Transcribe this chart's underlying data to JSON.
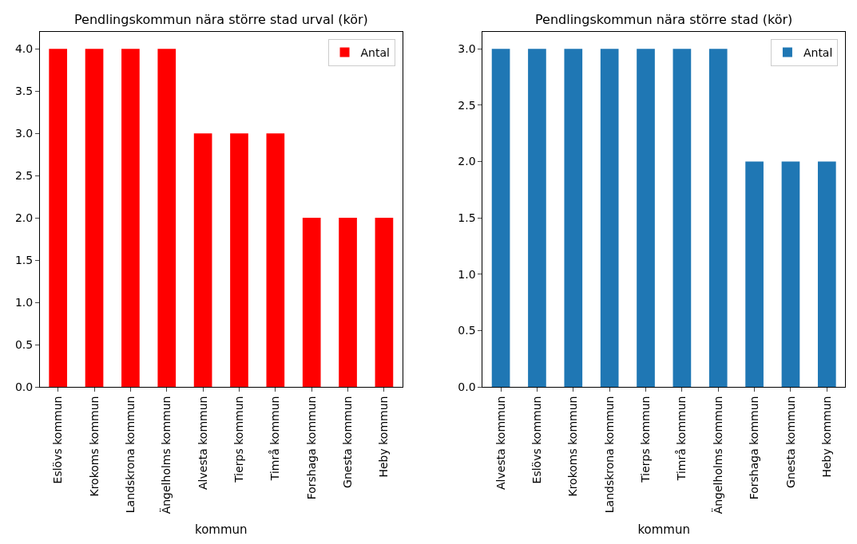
{
  "chart_data": [
    {
      "type": "bar",
      "title": "Pendlingskommun nära större stad urval (kör)",
      "xlabel": "kommun",
      "categories": [
        "Eslövs kommun",
        "Krokoms kommun",
        "Landskrona kommun",
        "Ängelholms kommun",
        "Alvesta kommun",
        "Tierps kommun",
        "Timrå kommun",
        "Forshaga kommun",
        "Gnesta kommun",
        "Heby kommun"
      ],
      "series": [
        {
          "name": "Antal",
          "color": "#ff0000",
          "values": [
            4,
            4,
            4,
            4,
            3,
            3,
            3,
            2,
            2,
            2
          ]
        }
      ],
      "ylim": [
        0,
        4.2
      ],
      "yticks": [
        {
          "value": 0,
          "label": "0.0"
        },
        {
          "value": 0.5,
          "label": "0.5"
        },
        {
          "value": 1,
          "label": "1.0"
        },
        {
          "value": 1.5,
          "label": "1.5"
        },
        {
          "value": 2,
          "label": "2.0"
        },
        {
          "value": 2.5,
          "label": "2.5"
        },
        {
          "value": 3,
          "label": "3.0"
        },
        {
          "value": 3.5,
          "label": "3.5"
        },
        {
          "value": 4,
          "label": "4.0"
        }
      ],
      "legend": "top right"
    },
    {
      "type": "bar",
      "title": "Pendlingskommun nära större stad (kör)",
      "xlabel": "kommun",
      "categories": [
        "Alvesta kommun",
        "Eslövs kommun",
        "Krokoms kommun",
        "Landskrona kommun",
        "Tierps kommun",
        "Timrå kommun",
        "Ängelholms kommun",
        "Forshaga kommun",
        "Gnesta kommun",
        "Heby kommun"
      ],
      "series": [
        {
          "name": "Antal",
          "color": "#1f77b4",
          "values": [
            3,
            3,
            3,
            3,
            3,
            3,
            3,
            2,
            2,
            2
          ]
        }
      ],
      "ylim": [
        0,
        3.15
      ],
      "yticks": [
        {
          "value": 0,
          "label": "0.0"
        },
        {
          "value": 0.5,
          "label": "0.5"
        },
        {
          "value": 1,
          "label": "1.0"
        },
        {
          "value": 1.5,
          "label": "1.5"
        },
        {
          "value": 2,
          "label": "2.0"
        },
        {
          "value": 2.5,
          "label": "2.5"
        },
        {
          "value": 3,
          "label": "3.0"
        }
      ],
      "legend": "top right"
    }
  ]
}
